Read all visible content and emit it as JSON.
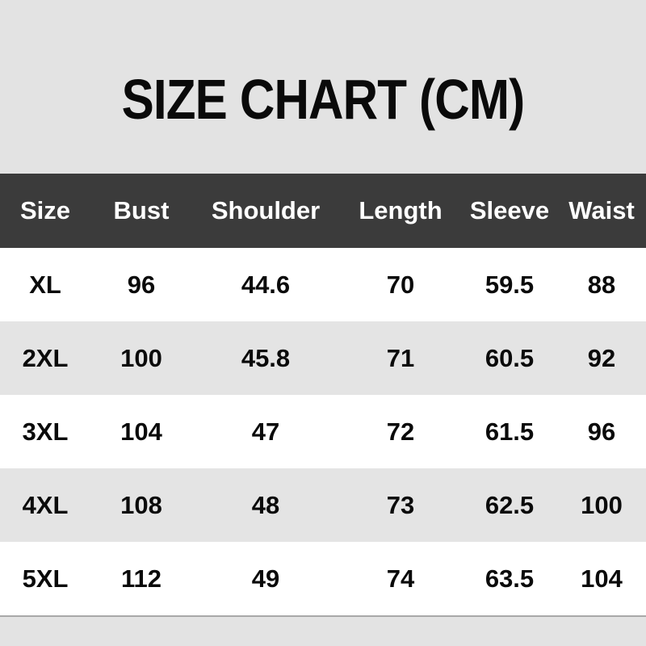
{
  "title": "SIZE CHART (CM)",
  "colors": {
    "page_background": "#e3e3e3",
    "header_background": "#3b3b3b",
    "header_text": "#ffffff",
    "row_white": "#ffffff",
    "row_gray": "#e4e4e4",
    "body_text": "#0a0a0a",
    "table_bottom_rule": "#a9a9a9"
  },
  "chart_data": {
    "type": "table",
    "title": "SIZE CHART (CM)",
    "unit": "CM",
    "columns": [
      "Size",
      "Bust",
      "Shoulder",
      "Length",
      "Sleeve",
      "Waist"
    ],
    "rows": [
      [
        "XL",
        "96",
        "44.6",
        "70",
        "59.5",
        "88"
      ],
      [
        "2XL",
        "100",
        "45.8",
        "71",
        "60.5",
        "92"
      ],
      [
        "3XL",
        "104",
        "47",
        "72",
        "61.5",
        "96"
      ],
      [
        "4XL",
        "108",
        "48",
        "73",
        "62.5",
        "100"
      ],
      [
        "5XL",
        "112",
        "49",
        "74",
        "63.5",
        "104"
      ]
    ]
  }
}
